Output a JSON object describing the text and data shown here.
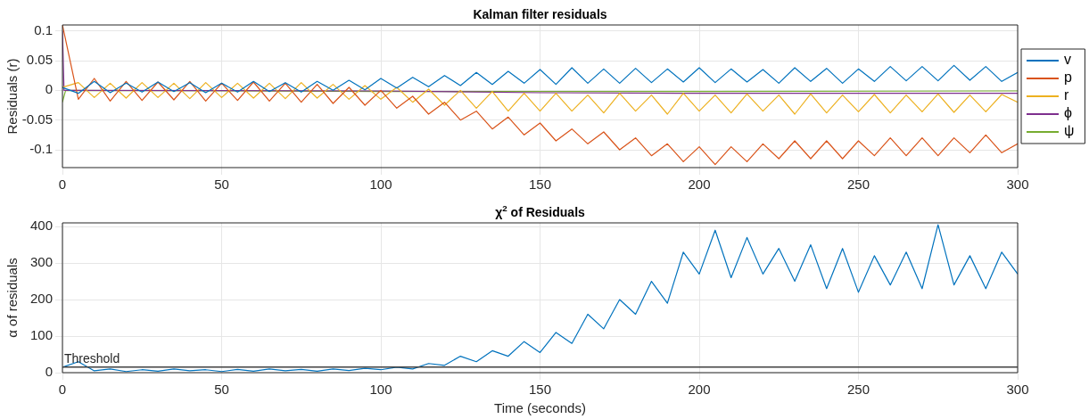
{
  "chart_data": [
    {
      "type": "line",
      "title": "Kalman filter residuals",
      "ylabel": "Residuals (r)",
      "x": [
        0,
        5,
        10,
        15,
        20,
        25,
        30,
        35,
        40,
        45,
        50,
        55,
        60,
        65,
        70,
        75,
        80,
        85,
        90,
        95,
        100,
        105,
        110,
        115,
        120,
        125,
        130,
        135,
        140,
        145,
        150,
        155,
        160,
        165,
        170,
        175,
        180,
        185,
        190,
        195,
        200,
        205,
        210,
        215,
        220,
        225,
        230,
        235,
        240,
        245,
        250,
        255,
        260,
        265,
        270,
        275,
        280,
        285,
        290,
        295,
        300
      ],
      "series": [
        {
          "name": "v",
          "color": "#0072bd",
          "values": [
            0.005,
            -0.005,
            0.015,
            -0.004,
            0.012,
            -0.003,
            0.014,
            -0.002,
            0.013,
            -0.004,
            0.012,
            -0.003,
            0.015,
            -0.002,
            0.013,
            -0.003,
            0.015,
            0.0,
            0.017,
            0.001,
            0.02,
            0.004,
            0.022,
            0.006,
            0.025,
            0.008,
            0.03,
            0.01,
            0.032,
            0.012,
            0.035,
            0.01,
            0.038,
            0.012,
            0.036,
            0.012,
            0.037,
            0.013,
            0.036,
            0.014,
            0.038,
            0.013,
            0.036,
            0.014,
            0.035,
            0.012,
            0.038,
            0.015,
            0.037,
            0.012,
            0.036,
            0.015,
            0.04,
            0.016,
            0.04,
            0.016,
            0.042,
            0.017,
            0.04,
            0.015,
            0.03
          ]
        },
        {
          "name": "p",
          "color": "#d95319",
          "values": [
            0.11,
            -0.015,
            0.02,
            -0.018,
            0.015,
            -0.017,
            0.014,
            -0.016,
            0.015,
            -0.018,
            0.012,
            -0.017,
            0.014,
            -0.018,
            0.012,
            -0.02,
            0.01,
            -0.022,
            0.005,
            -0.025,
            0.0,
            -0.03,
            -0.01,
            -0.04,
            -0.02,
            -0.05,
            -0.035,
            -0.065,
            -0.045,
            -0.075,
            -0.055,
            -0.085,
            -0.065,
            -0.09,
            -0.07,
            -0.1,
            -0.08,
            -0.11,
            -0.09,
            -0.12,
            -0.095,
            -0.125,
            -0.095,
            -0.12,
            -0.09,
            -0.115,
            -0.085,
            -0.115,
            -0.085,
            -0.115,
            -0.085,
            -0.11,
            -0.08,
            -0.11,
            -0.08,
            -0.11,
            -0.08,
            -0.105,
            -0.075,
            -0.105,
            -0.09
          ]
        },
        {
          "name": "r",
          "color": "#edb120",
          "values": [
            0.005,
            0.013,
            -0.012,
            0.012,
            -0.013,
            0.013,
            -0.012,
            0.012,
            -0.014,
            0.013,
            -0.012,
            0.012,
            -0.013,
            0.012,
            -0.014,
            0.013,
            -0.013,
            0.01,
            -0.015,
            0.008,
            -0.015,
            0.005,
            -0.02,
            0.002,
            -0.025,
            0.0,
            -0.03,
            -0.002,
            -0.035,
            -0.005,
            -0.035,
            -0.005,
            -0.035,
            -0.008,
            -0.038,
            -0.005,
            -0.035,
            -0.008,
            -0.04,
            -0.005,
            -0.035,
            -0.008,
            -0.038,
            -0.006,
            -0.035,
            -0.008,
            -0.04,
            -0.006,
            -0.038,
            -0.008,
            -0.036,
            -0.007,
            -0.038,
            -0.008,
            -0.036,
            -0.006,
            -0.037,
            -0.008,
            -0.036,
            -0.007,
            -0.02
          ]
        },
        {
          "name": "ϕ",
          "color": "#7e2f8e",
          "x": [
            0,
            0.5,
            2,
            100,
            150,
            200,
            300
          ],
          "values": [
            0.1,
            0.0,
            0.0,
            -0.001,
            -0.004,
            -0.005,
            -0.005
          ]
        },
        {
          "name": "ψ",
          "color": "#77ac30",
          "x": [
            0,
            1,
            100,
            200,
            300
          ],
          "values": [
            -0.02,
            0.0,
            -0.002,
            -0.002,
            -0.001
          ]
        }
      ],
      "xlim": [
        0,
        300
      ],
      "xticks": [
        0,
        50,
        100,
        150,
        200,
        250,
        300
      ],
      "ylim": [
        -0.13,
        0.11
      ],
      "yticks": [
        -0.1,
        -0.05,
        0,
        0.05,
        0.1
      ],
      "grid": true,
      "legend": "right",
      "marker": "none",
      "line_style": "solid"
    },
    {
      "type": "line",
      "title": "χ$^{2}$ of Residuals",
      "xlabel": "Time (seconds)",
      "ylabel": "α of residuals",
      "x": [
        0,
        5,
        10,
        15,
        20,
        25,
        30,
        35,
        40,
        45,
        50,
        55,
        60,
        65,
        70,
        75,
        80,
        85,
        90,
        95,
        100,
        105,
        110,
        115,
        120,
        125,
        130,
        135,
        140,
        145,
        150,
        155,
        160,
        165,
        170,
        175,
        180,
        185,
        190,
        195,
        200,
        205,
        210,
        215,
        220,
        225,
        230,
        235,
        240,
        245,
        250,
        255,
        260,
        265,
        270,
        275,
        280,
        285,
        290,
        295,
        300
      ],
      "series": [
        {
          "color": "#0072bd",
          "values": [
            15,
            30,
            5,
            10,
            3,
            8,
            4,
            10,
            5,
            8,
            3,
            9,
            4,
            10,
            5,
            9,
            4,
            10,
            6,
            12,
            8,
            15,
            10,
            25,
            20,
            45,
            30,
            60,
            45,
            85,
            55,
            110,
            80,
            160,
            120,
            200,
            160,
            250,
            190,
            330,
            270,
            390,
            260,
            370,
            270,
            340,
            250,
            350,
            230,
            340,
            220,
            320,
            240,
            330,
            230,
            405,
            240,
            320,
            230,
            330,
            270
          ]
        }
      ],
      "ref_lines": [
        {
          "axis": "y",
          "value": 15,
          "label": "Threshold",
          "color": "#404040"
        }
      ],
      "xlim": [
        0,
        300
      ],
      "xticks": [
        0,
        50,
        100,
        150,
        200,
        250,
        300
      ],
      "ylim": [
        0,
        410
      ],
      "yticks": [
        0,
        100,
        200,
        300,
        400
      ],
      "grid": true,
      "legend": false,
      "marker": "none",
      "line_style": "solid"
    }
  ]
}
